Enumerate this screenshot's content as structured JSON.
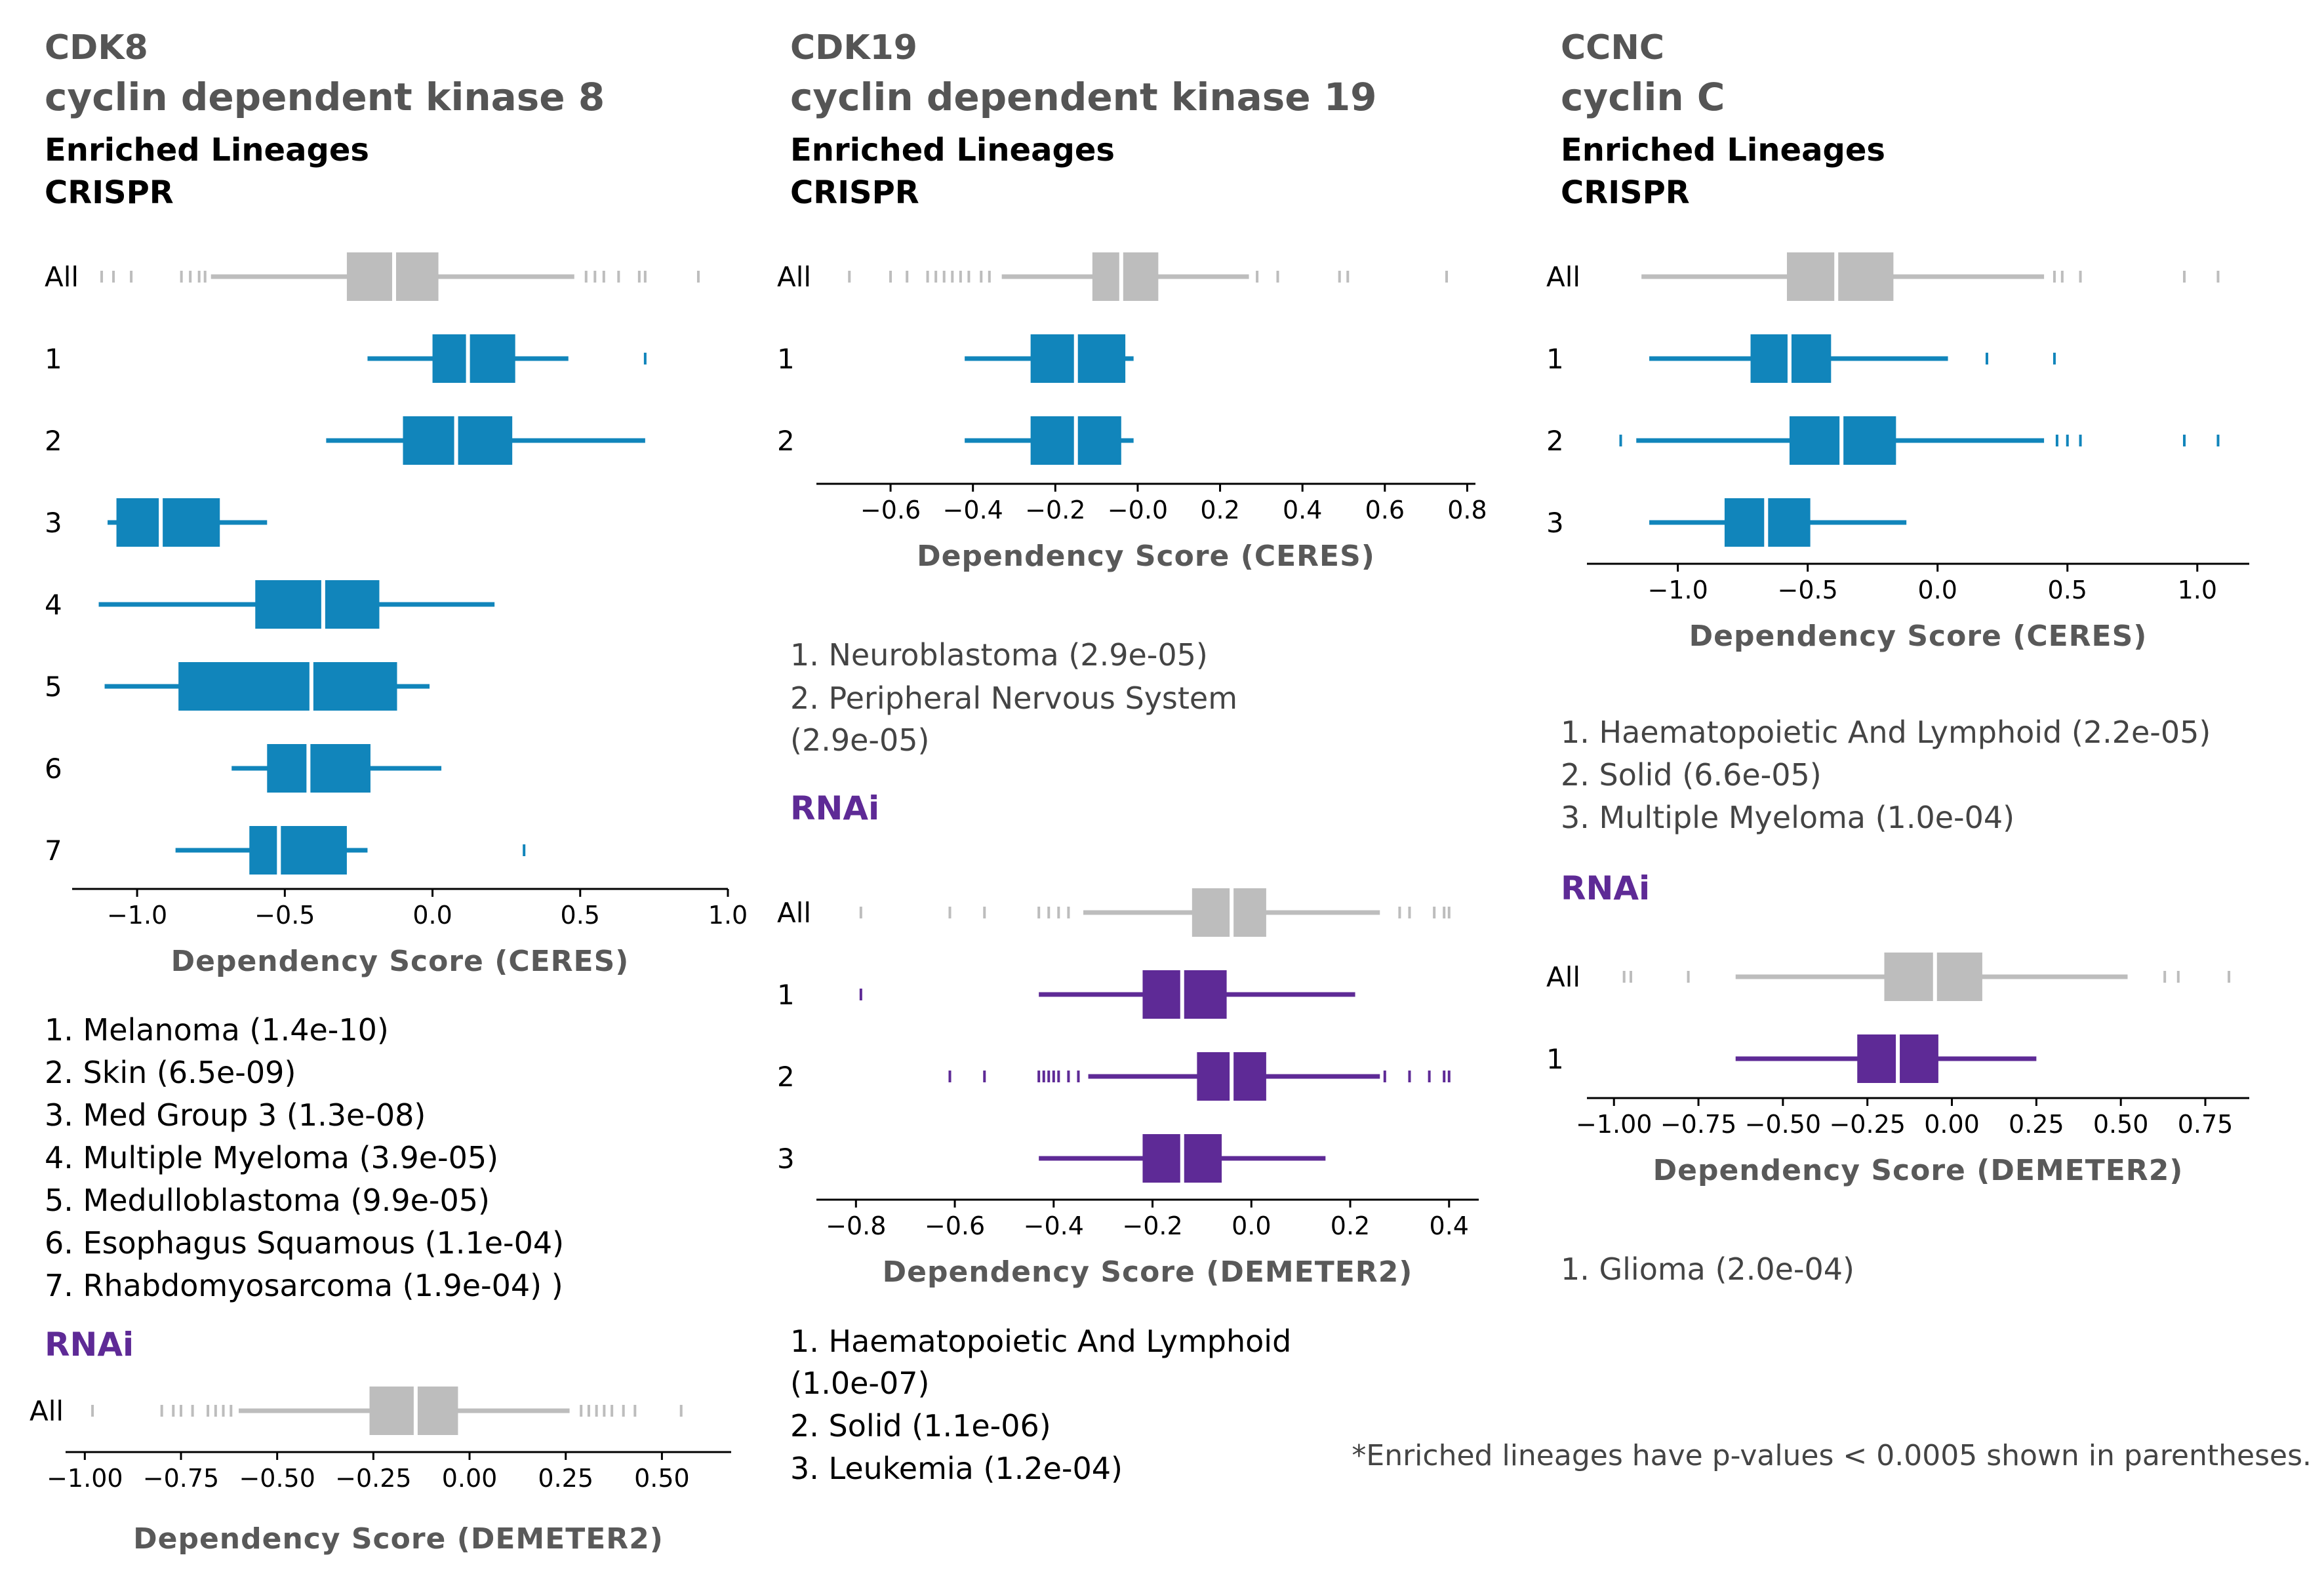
{
  "colors": {
    "crispr": "#1185bb",
    "rnai": "#5e2a96",
    "all": "#bdbdbd",
    "axis": "#000000"
  },
  "footnote": "*Enriched lineages have p-values < 0.0005 shown in parentheses.",
  "genes": [
    {
      "symbol": "CDK8",
      "name": "cyclin dependent kinase 8",
      "enriched_label": "Enriched Lineages",
      "crispr_label": "CRISPR",
      "rnai_label": "RNAi",
      "crispr_lineages": [
        "1. Melanoma (1.4e-10)",
        "2. Skin (6.5e-09)",
        "3. Med Group 3 (1.3e-08)",
        "4. Multiple Myeloma (3.9e-05)",
        "5. Medulloblastoma (9.9e-05)",
        "6. Esophagus Squamous (1.1e-04)",
        "7. Rhabdomyosarcoma (1.9e-04) )"
      ],
      "rnai_lineages": []
    },
    {
      "symbol": "CDK19",
      "name": "cyclin dependent kinase 19",
      "enriched_label": "Enriched Lineages",
      "crispr_label": "CRISPR",
      "rnai_label": "RNAi",
      "crispr_lineages": [
        "1. Neuroblastoma (2.9e-05)",
        "2. Peripheral Nervous System",
        "(2.9e-05)"
      ],
      "rnai_lineages": [
        "1. Haematopoietic And Lymphoid",
        "(1.0e-07)",
        "2. Solid (1.1e-06)",
        "3. Leukemia (1.2e-04)"
      ]
    },
    {
      "symbol": "CCNC",
      "name": "cyclin C",
      "enriched_label": "Enriched Lineages",
      "crispr_label": "CRISPR",
      "rnai_label": "RNAi",
      "crispr_lineages": [
        "1. Haematopoietic And Lymphoid (2.2e-05)",
        "2. Solid (6.6e-05)",
        "3. Multiple Myeloma (1.0e-04)"
      ],
      "rnai_lineages": [
        "1. Glioma (2.0e-04)"
      ]
    }
  ],
  "chart_data": [
    {
      "type": "box",
      "gene": "CDK8",
      "method": "CRISPR",
      "xlabel": "Dependency Score (CERES)",
      "xlim": [
        -1.22,
        1.0
      ],
      "ticks": [
        -1.0,
        -0.5,
        0.0,
        0.5,
        1.0
      ],
      "tick_labels": [
        "−1.0",
        "−0.5",
        "0.0",
        "0.5",
        "1.0"
      ],
      "rows": [
        {
          "label": "All",
          "group": "all",
          "whisker": [
            -0.75,
            0.48
          ],
          "box": [
            -0.29,
            0.02
          ],
          "median": -0.13,
          "outliers": [
            -1.12,
            -1.08,
            -1.02,
            -0.85,
            -0.82,
            -0.79,
            -0.77,
            0.52,
            0.55,
            0.58,
            0.63,
            0.7,
            0.72,
            0.9
          ]
        },
        {
          "label": "1",
          "group": "crispr",
          "whisker": [
            -0.22,
            0.46
          ],
          "box": [
            0.0,
            0.28
          ],
          "median": 0.12,
          "outliers": [
            0.72
          ]
        },
        {
          "label": "2",
          "group": "crispr",
          "whisker": [
            -0.36,
            0.72
          ],
          "box": [
            -0.1,
            0.27
          ],
          "median": 0.08,
          "outliers": []
        },
        {
          "label": "3",
          "group": "crispr",
          "whisker": [
            -1.1,
            -0.56
          ],
          "box": [
            -1.07,
            -0.72
          ],
          "median": -0.92,
          "outliers": []
        },
        {
          "label": "4",
          "group": "crispr",
          "whisker": [
            -1.13,
            0.21
          ],
          "box": [
            -0.6,
            -0.18
          ],
          "median": -0.37,
          "outliers": []
        },
        {
          "label": "5",
          "group": "crispr",
          "whisker": [
            -1.11,
            -0.01
          ],
          "box": [
            -0.86,
            -0.12
          ],
          "median": -0.41,
          "outliers": []
        },
        {
          "label": "6",
          "group": "crispr",
          "whisker": [
            -0.68,
            0.03
          ],
          "box": [
            -0.56,
            -0.21
          ],
          "median": -0.42,
          "outliers": []
        },
        {
          "label": "7",
          "group": "crispr",
          "whisker": [
            -0.87,
            -0.22
          ],
          "box": [
            -0.62,
            -0.29
          ],
          "median": -0.52,
          "outliers": [
            0.31
          ]
        }
      ]
    },
    {
      "type": "box",
      "gene": "CDK8",
      "method": "RNAi",
      "xlabel": "Dependency Score (DEMETER2)",
      "xlim": [
        -1.05,
        0.68
      ],
      "ticks": [
        -1.0,
        -0.75,
        -0.5,
        -0.25,
        0.0,
        0.25,
        0.5
      ],
      "tick_labels": [
        "−1.00",
        "−0.75",
        "−0.50",
        "−0.25",
        "0.00",
        "0.25",
        "0.50"
      ],
      "rows": [
        {
          "label": "All",
          "group": "all",
          "whisker": [
            -0.6,
            0.26
          ],
          "box": [
            -0.26,
            -0.03
          ],
          "median": -0.14,
          "outliers": [
            -0.98,
            -0.8,
            -0.77,
            -0.75,
            -0.72,
            -0.68,
            -0.66,
            -0.64,
            -0.62,
            0.29,
            0.31,
            0.33,
            0.35,
            0.37,
            0.4,
            0.43,
            0.55
          ]
        }
      ]
    },
    {
      "type": "box",
      "gene": "CDK19",
      "method": "CRISPR",
      "xlabel": "Dependency Score (CERES)",
      "xlim": [
        -0.78,
        0.82
      ],
      "ticks": [
        -0.6,
        -0.4,
        -0.2,
        0.0,
        0.2,
        0.4,
        0.6,
        0.8
      ],
      "tick_labels": [
        "−0.6",
        "−0.4",
        "−0.2",
        "−0.0",
        "0.2",
        "0.4",
        "0.6",
        "0.8"
      ],
      "rows": [
        {
          "label": "All",
          "group": "all",
          "whisker": [
            -0.33,
            0.27
          ],
          "box": [
            -0.11,
            0.05
          ],
          "median": -0.04,
          "outliers": [
            -0.7,
            -0.6,
            -0.56,
            -0.51,
            -0.49,
            -0.47,
            -0.45,
            -0.43,
            -0.41,
            -0.38,
            -0.36,
            0.29,
            0.34,
            0.49,
            0.51,
            0.75
          ]
        },
        {
          "label": "1",
          "group": "crispr",
          "whisker": [
            -0.42,
            -0.01
          ],
          "box": [
            -0.26,
            -0.03
          ],
          "median": -0.15,
          "outliers": []
        },
        {
          "label": "2",
          "group": "crispr",
          "whisker": [
            -0.42,
            -0.01
          ],
          "box": [
            -0.26,
            -0.04
          ],
          "median": -0.15,
          "outliers": []
        }
      ]
    },
    {
      "type": "box",
      "gene": "CDK19",
      "method": "RNAi",
      "xlabel": "Dependency Score (DEMETER2)",
      "xlim": [
        -0.88,
        0.46
      ],
      "ticks": [
        -0.8,
        -0.6,
        -0.4,
        -0.2,
        0.0,
        0.2,
        0.4
      ],
      "tick_labels": [
        "−0.8",
        "−0.6",
        "−0.4",
        "−0.2",
        "0.0",
        "0.2",
        "0.4"
      ],
      "rows": [
        {
          "label": "All",
          "group": "all",
          "whisker": [
            -0.34,
            0.26
          ],
          "box": [
            -0.12,
            0.03
          ],
          "median": -0.04,
          "outliers": [
            -0.79,
            -0.61,
            -0.54,
            -0.43,
            -0.41,
            -0.39,
            -0.37,
            0.3,
            0.32,
            0.37,
            0.39,
            0.4
          ]
        },
        {
          "label": "1",
          "group": "rnai",
          "whisker": [
            -0.43,
            0.21
          ],
          "box": [
            -0.22,
            -0.05
          ],
          "median": -0.14,
          "outliers": [
            -0.79
          ]
        },
        {
          "label": "2",
          "group": "rnai",
          "whisker": [
            -0.33,
            0.26
          ],
          "box": [
            -0.11,
            0.03
          ],
          "median": -0.04,
          "outliers": [
            -0.61,
            -0.54,
            -0.43,
            -0.42,
            -0.41,
            -0.4,
            -0.39,
            -0.37,
            -0.35,
            0.27,
            0.32,
            0.36,
            0.39,
            0.4
          ]
        },
        {
          "label": "3",
          "group": "rnai",
          "whisker": [
            -0.43,
            0.15
          ],
          "box": [
            -0.22,
            -0.06
          ],
          "median": -0.14,
          "outliers": []
        }
      ]
    },
    {
      "type": "box",
      "gene": "CCNC",
      "method": "CRISPR",
      "xlabel": "Dependency Score (CERES)",
      "xlim": [
        -1.35,
        1.2
      ],
      "ticks": [
        -1.0,
        -0.5,
        0.0,
        0.5,
        1.0
      ],
      "tick_labels": [
        "−1.0",
        "−0.5",
        "0.0",
        "0.5",
        "1.0"
      ],
      "rows": [
        {
          "label": "All",
          "group": "all",
          "whisker": [
            -1.14,
            0.41
          ],
          "box": [
            -0.58,
            -0.17
          ],
          "median": -0.39,
          "outliers": [
            0.45,
            0.48,
            0.55,
            0.95,
            1.08
          ]
        },
        {
          "label": "1",
          "group": "crispr",
          "whisker": [
            -1.11,
            0.04
          ],
          "box": [
            -0.72,
            -0.41
          ],
          "median": -0.57,
          "outliers": [
            0.19,
            0.45
          ]
        },
        {
          "label": "2",
          "group": "crispr",
          "whisker": [
            -1.16,
            0.41
          ],
          "box": [
            -0.57,
            -0.16
          ],
          "median": -0.37,
          "outliers": [
            -1.22,
            0.46,
            0.5,
            0.55,
            0.95,
            1.08
          ]
        },
        {
          "label": "3",
          "group": "crispr",
          "whisker": [
            -1.11,
            -0.12
          ],
          "box": [
            -0.82,
            -0.49
          ],
          "median": -0.66,
          "outliers": []
        }
      ]
    },
    {
      "type": "box",
      "gene": "CCNC",
      "method": "RNAi",
      "xlabel": "Dependency Score (DEMETER2)",
      "xlim": [
        -1.08,
        0.88
      ],
      "ticks": [
        -1.0,
        -0.75,
        -0.5,
        -0.25,
        0.0,
        0.25,
        0.5,
        0.75
      ],
      "tick_labels": [
        "−1.00",
        "−0.75",
        "−0.50",
        "−0.25",
        "0.00",
        "0.25",
        "0.50",
        "0.75"
      ],
      "rows": [
        {
          "label": "All",
          "group": "all",
          "whisker": [
            -0.64,
            0.52
          ],
          "box": [
            -0.2,
            0.09
          ],
          "median": -0.05,
          "outliers": [
            -0.97,
            -0.95,
            -0.78,
            0.63,
            0.67,
            0.82
          ]
        },
        {
          "label": "1",
          "group": "rnai",
          "whisker": [
            -0.64,
            0.25
          ],
          "box": [
            -0.28,
            -0.04
          ],
          "median": -0.16,
          "outliers": []
        }
      ]
    }
  ]
}
